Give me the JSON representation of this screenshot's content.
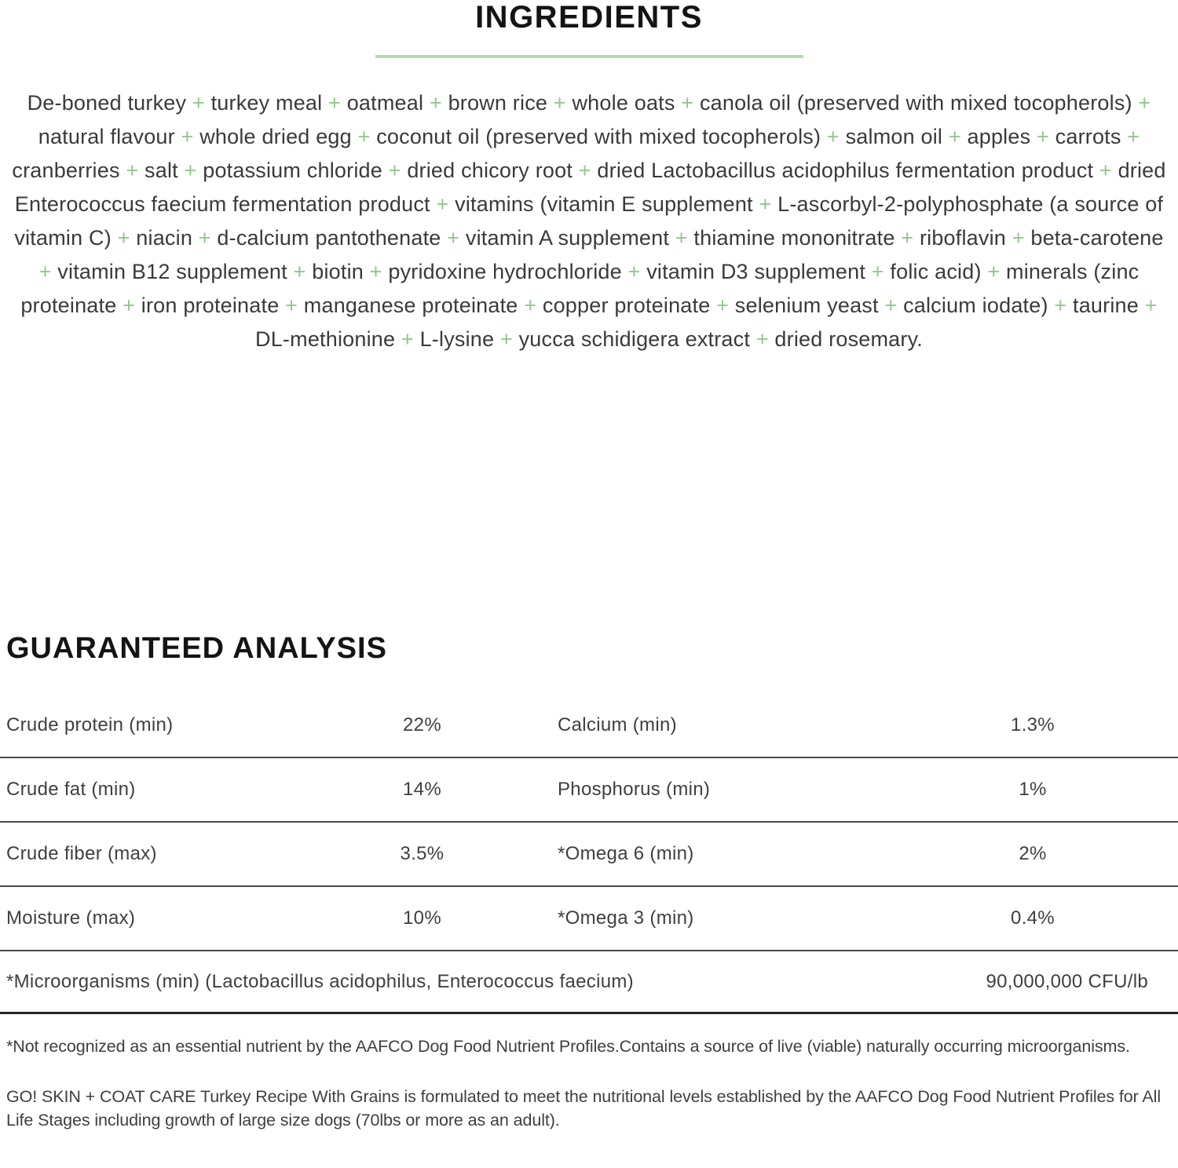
{
  "ingredients": {
    "title": "INGREDIENTS",
    "separator": "+",
    "items": [
      "De-boned turkey",
      "turkey meal",
      "oatmeal",
      "brown rice",
      "whole oats",
      "canola oil (preserved with mixed tocopherols)",
      "natural flavour",
      "whole dried egg",
      "coconut oil (preserved with mixed tocopherols)",
      "salmon oil",
      "apples",
      "carrots",
      "cranberries",
      "salt",
      "potassium chloride",
      "dried chicory root",
      "dried Lactobacillus acidophilus fermentation product",
      "dried Enterococcus faecium fermentation product",
      "vitamins (vitamin E supplement",
      "L-ascorbyl-2-polyphosphate (a source of vitamin C)",
      "niacin",
      "d-calcium pantothenate",
      "vitamin A supplement",
      "thiamine mononitrate",
      "riboflavin",
      "beta-carotene",
      "vitamin B12 supplement",
      "biotin",
      "pyridoxine hydrochloride",
      "vitamin D3 supplement",
      "folic acid)",
      "minerals (zinc proteinate",
      "iron proteinate",
      "manganese proteinate",
      "copper proteinate",
      "selenium yeast",
      "calcium iodate)",
      "taurine",
      "DL-methionine",
      "L-lysine",
      "yucca schidigera extract",
      "dried rosemary."
    ]
  },
  "analysis": {
    "title": "GUARANTEED ANALYSIS",
    "rows": [
      {
        "label_left": "Crude protein (min)",
        "value_left": "22%",
        "label_right": "Calcium (min)",
        "value_right": "1.3%"
      },
      {
        "label_left": "Crude fat (min)",
        "value_left": "14%",
        "label_right": "Phosphorus (min)",
        "value_right": "1%"
      },
      {
        "label_left": "Crude fiber (max)",
        "value_left": "3.5%",
        "label_right": "*Omega 6 (min)",
        "value_right": "2%"
      },
      {
        "label_left": "Moisture (max)",
        "value_left": "10%",
        "label_right": "*Omega 3 (min)",
        "value_right": "0.4%"
      }
    ],
    "full_row": {
      "label": "*Microorganisms (min) (Lactobacillus acidophilus, Enterococcus faecium)",
      "value": "90,000,000 CFU/lb"
    }
  },
  "footnotes": [
    "*Not recognized as an essential nutrient by the AAFCO Dog Food Nutrient Profiles.Contains a source of live (viable) naturally occurring microorganisms.",
    "GO! SKIN + COAT CARE Turkey Recipe With Grains is formulated to meet the nutritional levels established by the AAFCO Dog Food Nutrient Profiles for All Life Stages including growth of large size dogs (70lbs or more as an adult)."
  ],
  "colors": {
    "accent_green": "#94c68e",
    "divider_green": "#b5d9b0",
    "text": "#3a3a3a",
    "rule": "#4a4a4a",
    "rule_heavy": "#262626"
  }
}
